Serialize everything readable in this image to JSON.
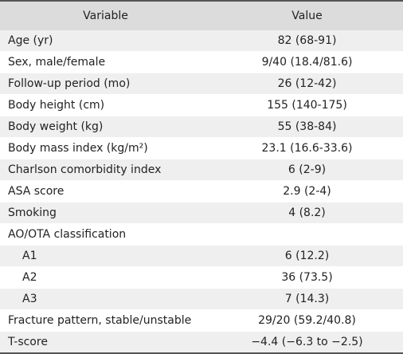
{
  "table": {
    "header": [
      "Variable",
      "Value"
    ],
    "rows": [
      [
        "Age (yr)",
        "82 (68-91)"
      ],
      [
        "Sex, male/female",
        "9/40 (18.4/81.6)"
      ],
      [
        "Follow-up period (mo)",
        "26 (12-42)"
      ],
      [
        "Body height (cm)",
        "155 (140-175)"
      ],
      [
        "Body weight (kg)",
        "55 (38-84)"
      ],
      [
        "Body mass index (kg/m²)",
        "23.1 (16.6-33.6)"
      ],
      [
        "Charlson comorbidity index",
        "6 (2-9)"
      ],
      [
        "ASA score",
        "2.9 (2-4)"
      ],
      [
        "Smoking",
        "4 (8.2)"
      ],
      [
        "AO/OTA classification"
      ],
      [
        "A1",
        "6 (12.2)"
      ],
      [
        "A2",
        "36 (73.5)"
      ],
      [
        "A3",
        "7 (14.3)"
      ],
      [
        "Fracture pattern, stable/unstable",
        "29/20 (59.2/40.8)"
      ],
      [
        "T-score",
        "−4.4 (−6.3 to −2.5)"
      ]
    ]
  }
}
